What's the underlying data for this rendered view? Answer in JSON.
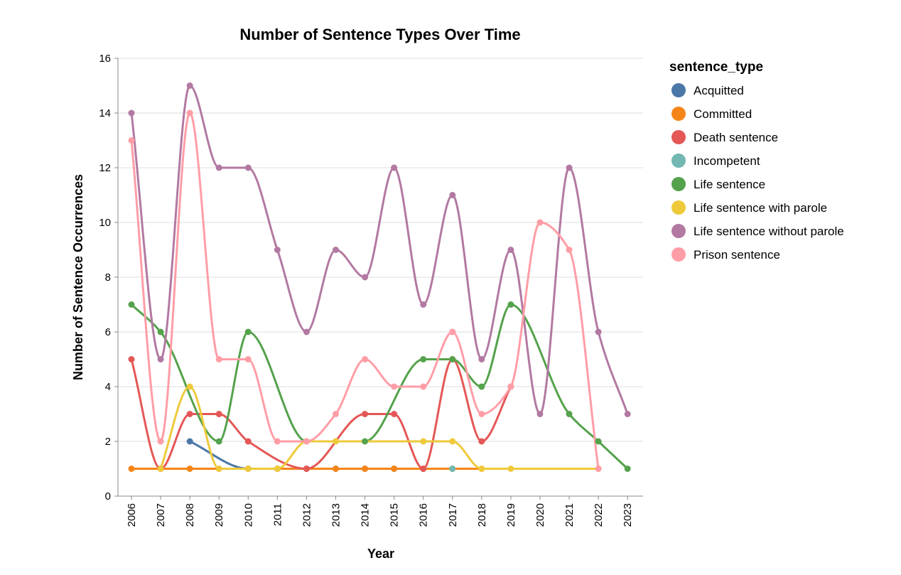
{
  "chart_data": {
    "type": "line",
    "title": "Number of Sentence Types Over Time",
    "xlabel": "Year",
    "ylabel": "Number of Sentence Occurrences",
    "ylim": [
      0,
      16
    ],
    "yticks": [
      0,
      2,
      4,
      6,
      8,
      10,
      12,
      14,
      16
    ],
    "x": [
      2006,
      2007,
      2008,
      2009,
      2010,
      2011,
      2012,
      2013,
      2014,
      2015,
      2016,
      2017,
      2018,
      2019,
      2020,
      2021,
      2022,
      2023
    ],
    "grid": true,
    "legend_title": "sentence_type",
    "legend_position": "right",
    "series": [
      {
        "name": "Acquitted",
        "color": "#4c78a8",
        "points": [
          [
            2008,
            2
          ],
          [
            2010,
            1
          ],
          [
            2011,
            1
          ],
          [
            2012,
            1
          ],
          [
            2013,
            1
          ],
          [
            2014,
            1
          ],
          [
            2015,
            1
          ],
          [
            2016,
            1
          ]
        ]
      },
      {
        "name": "Committed",
        "color": "#f58518",
        "points": [
          [
            2006,
            1
          ],
          [
            2007,
            1
          ],
          [
            2008,
            1
          ],
          [
            2009,
            1
          ],
          [
            2010,
            1
          ],
          [
            2011,
            1
          ],
          [
            2012,
            1
          ],
          [
            2013,
            1
          ],
          [
            2014,
            1
          ],
          [
            2015,
            1
          ],
          [
            2016,
            1
          ],
          [
            2017,
            1
          ],
          [
            2018,
            1
          ]
        ]
      },
      {
        "name": "Death sentence",
        "color": "#e45756",
        "points": [
          [
            2006,
            5
          ],
          [
            2007,
            1
          ],
          [
            2008,
            3
          ],
          [
            2009,
            3
          ],
          [
            2010,
            2
          ],
          [
            2012,
            1
          ],
          [
            2014,
            3
          ],
          [
            2015,
            3
          ],
          [
            2016,
            1
          ],
          [
            2017,
            5
          ],
          [
            2018,
            2
          ],
          [
            2019,
            4
          ]
        ]
      },
      {
        "name": "Incompetent",
        "color": "#72b7b2",
        "points": [
          [
            2017,
            1
          ]
        ]
      },
      {
        "name": "Life sentence",
        "color": "#54a24b",
        "points": [
          [
            2006,
            7
          ],
          [
            2007,
            6
          ],
          [
            2009,
            2
          ],
          [
            2010,
            6
          ],
          [
            2012,
            2
          ],
          [
            2014,
            2
          ],
          [
            2016,
            5
          ],
          [
            2017,
            5
          ],
          [
            2018,
            4
          ],
          [
            2019,
            7
          ],
          [
            2021,
            3
          ],
          [
            2022,
            2
          ],
          [
            2023,
            1
          ]
        ]
      },
      {
        "name": "Life sentence with parole",
        "color": "#eeca3b",
        "points": [
          [
            2007,
            1
          ],
          [
            2008,
            4
          ],
          [
            2009,
            1
          ],
          [
            2010,
            1
          ],
          [
            2011,
            1
          ],
          [
            2012,
            2
          ],
          [
            2013,
            2
          ],
          [
            2016,
            2
          ],
          [
            2017,
            2
          ],
          [
            2018,
            1
          ],
          [
            2019,
            1
          ],
          [
            2022,
            1
          ]
        ]
      },
      {
        "name": "Life sentence without parole",
        "color": "#b279a2",
        "points": [
          [
            2006,
            14
          ],
          [
            2007,
            5
          ],
          [
            2008,
            15
          ],
          [
            2009,
            12
          ],
          [
            2010,
            12
          ],
          [
            2011,
            9
          ],
          [
            2012,
            6
          ],
          [
            2013,
            9
          ],
          [
            2014,
            8
          ],
          [
            2015,
            12
          ],
          [
            2016,
            7
          ],
          [
            2017,
            11
          ],
          [
            2018,
            5
          ],
          [
            2019,
            9
          ],
          [
            2020,
            3
          ],
          [
            2021,
            12
          ],
          [
            2022,
            6
          ],
          [
            2023,
            3
          ]
        ]
      },
      {
        "name": "Prison sentence",
        "color": "#ff9da6",
        "points": [
          [
            2006,
            13
          ],
          [
            2007,
            2
          ],
          [
            2008,
            14
          ],
          [
            2009,
            5
          ],
          [
            2010,
            5
          ],
          [
            2011,
            2
          ],
          [
            2012,
            2
          ],
          [
            2013,
            3
          ],
          [
            2014,
            5
          ],
          [
            2015,
            4
          ],
          [
            2016,
            4
          ],
          [
            2017,
            6
          ],
          [
            2018,
            3
          ],
          [
            2019,
            4
          ],
          [
            2020,
            10
          ],
          [
            2021,
            9
          ],
          [
            2022,
            1
          ]
        ]
      }
    ]
  }
}
